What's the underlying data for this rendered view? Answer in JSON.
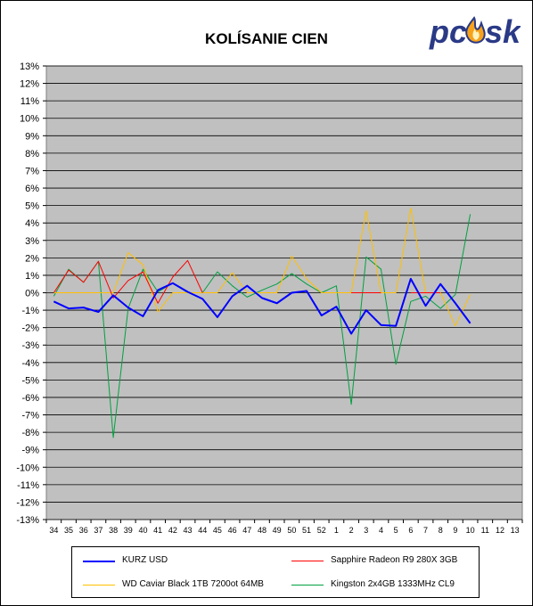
{
  "chart_data": {
    "type": "line",
    "title": "KOLÍSANIE CIEN",
    "xlabel": "",
    "ylabel": "",
    "ylim": [
      -13,
      13
    ],
    "yticks": [
      "13%",
      "12%",
      "11%",
      "10%",
      "9%",
      "8%",
      "7%",
      "6%",
      "5%",
      "4%",
      "3%",
      "2%",
      "1%",
      "0%",
      "-1%",
      "-2%",
      "-3%",
      "-4%",
      "-5%",
      "-6%",
      "-7%",
      "-8%",
      "-9%",
      "-10%",
      "-11%",
      "-12%",
      "-13%"
    ],
    "categories": [
      "34",
      "35",
      "36",
      "37",
      "38",
      "39",
      "40",
      "41",
      "42",
      "43",
      "44",
      "45",
      "46",
      "47",
      "48",
      "49",
      "50",
      "51",
      "52",
      "1",
      "2",
      "3",
      "4",
      "5",
      "6",
      "7",
      "8",
      "9",
      "10",
      "11",
      "12",
      "13"
    ],
    "grid": true,
    "legend_position": "bottom",
    "series": [
      {
        "name": "KURZ USD",
        "color": "#0000ff",
        "width": 2,
        "values": [
          -0.5,
          -0.9,
          -0.85,
          -1.1,
          -0.15,
          -0.85,
          -1.35,
          0.15,
          0.55,
          0.05,
          -0.35,
          -1.4,
          -0.2,
          0.4,
          -0.3,
          -0.6,
          0.0,
          0.1,
          -1.3,
          -0.8,
          -2.35,
          -1.0,
          -1.85,
          -1.9,
          0.8,
          -0.75,
          0.5,
          -0.6,
          -1.75,
          null,
          null,
          null
        ]
      },
      {
        "name": "Sapphire Radeon R9 280X 3GB",
        "color": "#ff0000",
        "width": 1,
        "values": [
          0.0,
          1.3,
          0.6,
          1.8,
          -0.3,
          0.7,
          1.2,
          -0.6,
          0.9,
          1.85,
          0.0,
          null,
          null,
          null,
          null,
          null,
          null,
          null,
          0.0,
          null,
          0.0,
          0.0,
          0.0,
          null,
          0.0,
          0.0,
          0.0,
          null,
          null,
          null,
          null,
          null
        ]
      },
      {
        "name": "WD Caviar Black 1TB 7200ot 64MB",
        "color": "#ffc000",
        "width": 1,
        "values": [
          0.0,
          0.0,
          0.0,
          0.0,
          0.0,
          2.3,
          1.6,
          -1.1,
          0.0,
          0.0,
          0.0,
          0.0,
          1.15,
          0.0,
          0.0,
          0.0,
          2.1,
          0.8,
          0.0,
          0.0,
          0.0,
          4.7,
          0.0,
          0.0,
          4.85,
          0.0,
          0.0,
          -1.9,
          -0.1,
          null,
          null,
          null
        ]
      },
      {
        "name": "Kingston 2x4GB 1333MHz CL9",
        "color": "#00a040",
        "width": 1,
        "values": [
          -0.2,
          1.35,
          0.6,
          1.8,
          -8.3,
          -0.9,
          1.35,
          0.05,
          0.55,
          0.0,
          0.0,
          1.2,
          0.4,
          -0.25,
          0.15,
          0.5,
          1.1,
          0.5,
          0.0,
          0.4,
          -6.4,
          2.05,
          1.35,
          -4.1,
          -0.5,
          -0.2,
          -0.9,
          -0.1,
          4.5,
          null,
          null,
          null
        ]
      }
    ]
  },
  "legend": {
    "items": [
      "KURZ USD",
      "Sapphire Radeon R9 280X 3GB",
      "WD Caviar Black 1TB 7200ot 64MB",
      "Kingston 2x4GB 1333MHz CL9"
    ]
  },
  "logo": {
    "text": "pc",
    "text2": "sk",
    "color": "#2a3a86",
    "flame": "#f7a21b"
  }
}
